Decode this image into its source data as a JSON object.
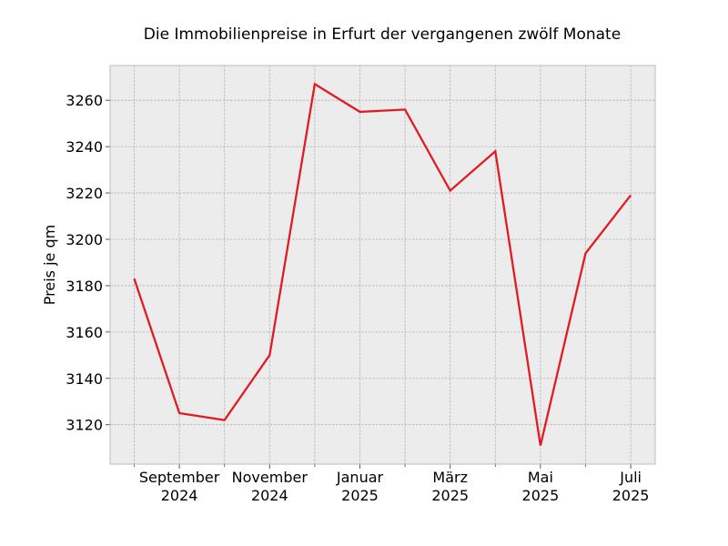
{
  "chart_data": {
    "type": "line",
    "title": "Die Immobilienpreise in Erfurt der vergangenen zwölf Monate",
    "xlabel": "",
    "ylabel": "Preis je qm",
    "x": [
      "2024-08",
      "2024-09",
      "2024-10",
      "2024-11",
      "2024-12",
      "2025-01",
      "2025-02",
      "2025-03",
      "2025-04",
      "2025-05",
      "2025-06",
      "2025-07"
    ],
    "series": [
      {
        "values": [
          3183,
          3125,
          3122,
          3150,
          3267,
          3255,
          3256,
          3221,
          3238,
          3111,
          3194,
          3219
        ]
      }
    ],
    "x_ticks": [
      {
        "x": "2024-09",
        "label": [
          "September",
          "2024"
        ]
      },
      {
        "x": "2024-11",
        "label": [
          "November",
          "2024"
        ]
      },
      {
        "x": "2025-01",
        "label": [
          "Januar",
          "2025"
        ]
      },
      {
        "x": "2025-03",
        "label": [
          "März",
          "2025"
        ]
      },
      {
        "x": "2025-05",
        "label": [
          "Mai",
          "2025"
        ]
      },
      {
        "x": "2025-07",
        "label": [
          "Juli",
          "2025"
        ]
      }
    ],
    "x_minor_ticks": [
      "2024-08",
      "2024-10",
      "2024-12",
      "2025-02",
      "2025-04",
      "2025-06"
    ],
    "y_ticks": [
      3120,
      3140,
      3160,
      3180,
      3200,
      3220,
      3240,
      3260
    ],
    "ylim": [
      3103,
      3275
    ],
    "grid": true,
    "colors": {
      "line": "#e01b22",
      "plot_background": "#ececec",
      "grid": "#b2b2b2",
      "frame": "#bcbcbc"
    }
  }
}
